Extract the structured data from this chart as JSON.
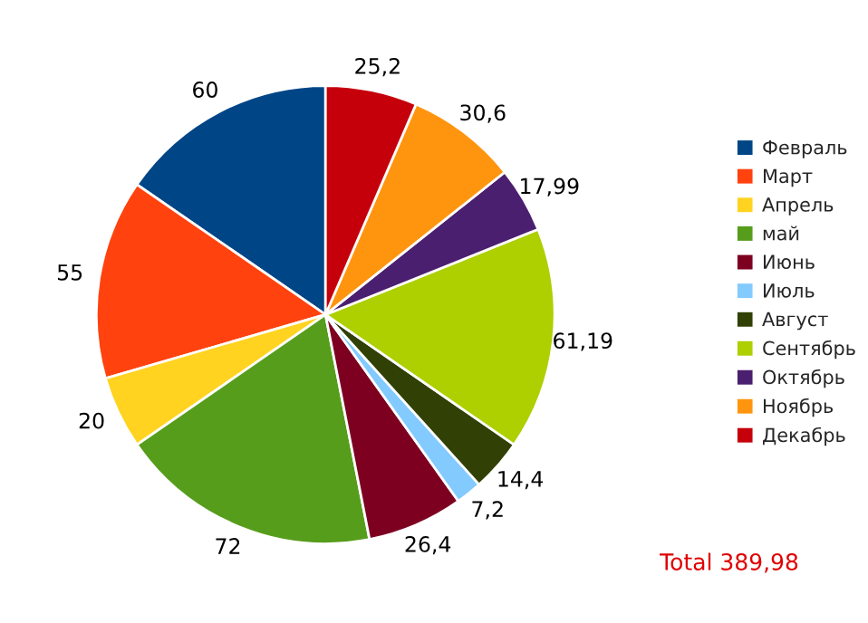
{
  "chart_data": {
    "type": "pie",
    "categories": [
      "Февраль",
      "Март",
      "Апрель",
      "май",
      "Июнь",
      "Июль",
      "Август",
      "Сентябрь",
      "Октябрь",
      "Ноябрь",
      "Декабрь"
    ],
    "values": [
      60,
      55,
      20,
      72,
      26.4,
      7.2,
      14.4,
      61.19,
      17.99,
      30.6,
      25.2
    ],
    "value_labels": [
      "60",
      "55",
      "20",
      "72",
      "26,4",
      "7,2",
      "14,4",
      "61,19",
      "17,99",
      "30,6",
      "25,2"
    ],
    "colors": [
      "#004586",
      "#ff420e",
      "#ffd320",
      "#579d1c",
      "#7e0021",
      "#83caff",
      "#314004",
      "#aecf00",
      "#4b1f6f",
      "#ff950e",
      "#c5000b"
    ],
    "legend": "right",
    "annotations": [
      "Total 389,98"
    ]
  }
}
